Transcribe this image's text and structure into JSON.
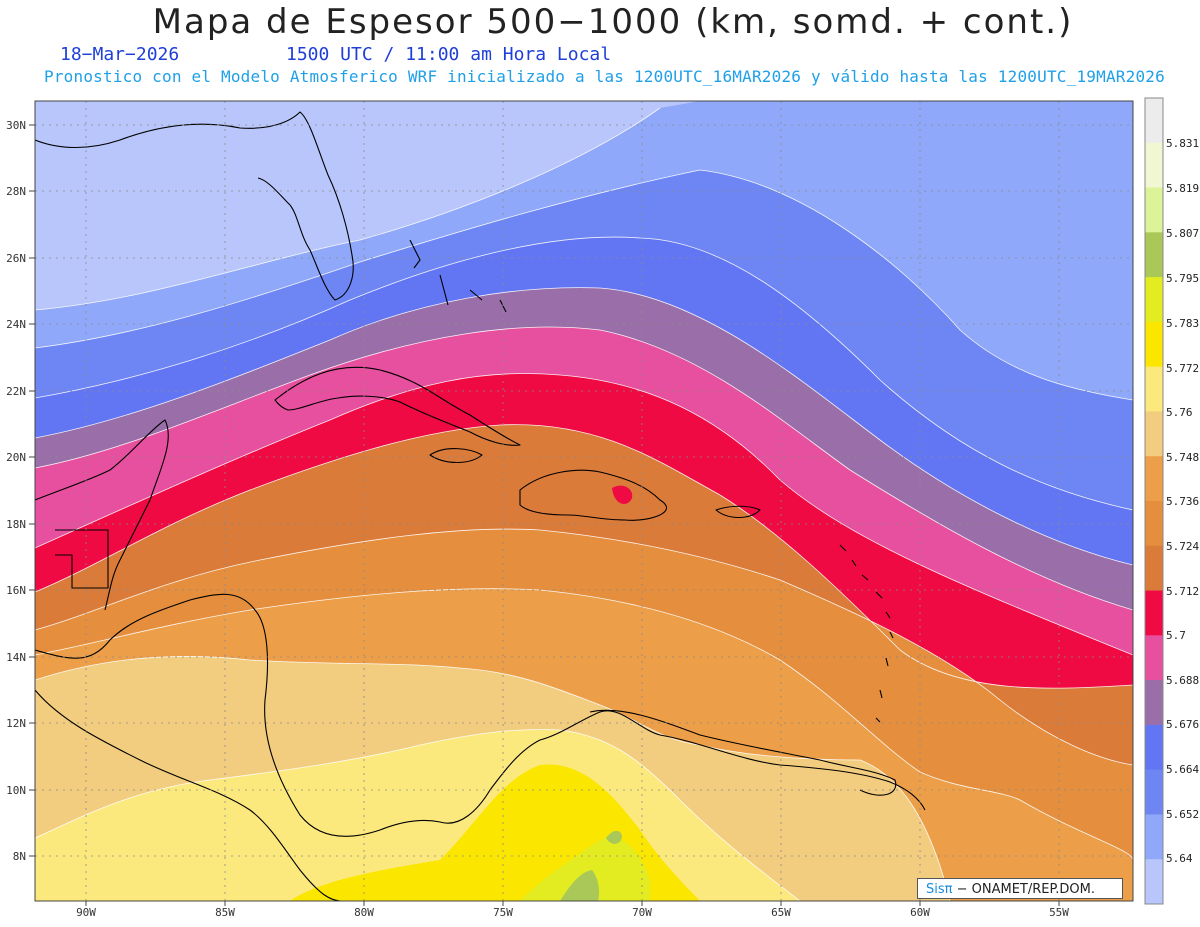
{
  "header": {
    "title": "Mapa de Espesor 500−1000 (km, somd. + cont.)",
    "date": "18−Mar−2026",
    "time": "1500 UTC / 11:00 am Hora Local",
    "forecast_line": "Pronostico con el Modelo Atmosferico WRF inicializado a las 1200UTC_16MAR2026 y válido hasta las  1200UTC_19MAR2026"
  },
  "map": {
    "lat_labels": [
      "30N",
      "28N",
      "26N",
      "24N",
      "22N",
      "20N",
      "18N",
      "16N",
      "14N",
      "12N",
      "10N",
      "8N"
    ],
    "lon_labels": [
      "90W",
      "85W",
      "80W",
      "75W",
      "70W",
      "65W",
      "60W",
      "55W"
    ],
    "thickness_colors": {
      "5.64": "#b9c6fb",
      "5.652": "#8fa8fa",
      "5.664": "#6e86f3",
      "5.676": "#6276f4",
      "5.688": "#9a6fa9",
      "5.7": "#e7509e",
      "5.712": "#ef0a43",
      "5.724": "#db7b3a",
      "5.736": "#e48e3e",
      "5.748": "#ec9f48",
      "5.76": "#f2cd7f",
      "5.772": "#fce97e",
      "5.783": "#fbe600",
      "5.795": "#e2ec20",
      "5.807": "#a9c858",
      "5.819": "#dcf39a",
      "5.831": "#f2f7d3"
    }
  },
  "colorbar": {
    "labels": [
      "5.831",
      "5.819",
      "5.807",
      "5.795",
      "5.783",
      "5.772",
      "5.76",
      "5.748",
      "5.736",
      "5.724",
      "5.712",
      "5.7",
      "5.688",
      "5.676",
      "5.664",
      "5.652",
      "5.64"
    ],
    "colors": [
      "#ececec",
      "#f2f7d3",
      "#dcf39a",
      "#a9c858",
      "#e2ec20",
      "#fbe600",
      "#fce97e",
      "#f2cd7f",
      "#ec9f48",
      "#e48e3e",
      "#db7b3a",
      "#ef0a43",
      "#e7509e",
      "#9a6fa9",
      "#6276f4",
      "#6e86f3",
      "#8fa8fa",
      "#b9c6fb"
    ]
  },
  "credit": {
    "brand": "Sisπ",
    "text": " − ONAMET/REP.DOM."
  }
}
